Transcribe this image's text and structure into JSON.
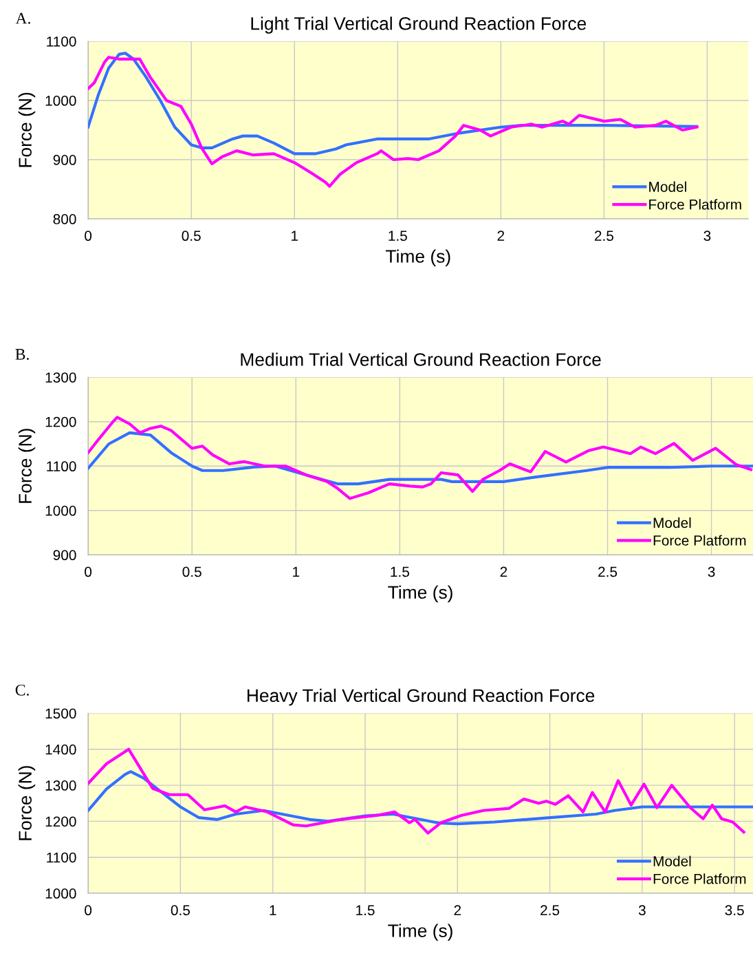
{
  "chart_data": [
    {
      "type": "line",
      "title": "Light Trial Vertical Ground Reaction Force",
      "xlabel": "Time (s)",
      "ylabel": "Force (N)",
      "annotations": [
        "A."
      ],
      "xlim": [
        0,
        3.2
      ],
      "ylim": [
        800,
        1100
      ],
      "xticks": [
        0,
        0.5,
        1,
        1.5,
        2,
        2.5,
        3
      ],
      "yticks": [
        800,
        900,
        1000,
        1100
      ],
      "grid": true,
      "legend": "bottom right",
      "series": [
        {
          "name": "Model",
          "color": "#3370ff",
          "x": [
            0,
            0.05,
            0.1,
            0.15,
            0.18,
            0.22,
            0.28,
            0.35,
            0.42,
            0.5,
            0.55,
            0.6,
            0.7,
            0.75,
            0.82,
            0.9,
            1.0,
            1.1,
            1.2,
            1.25,
            1.4,
            1.65,
            1.8,
            2.0,
            2.1,
            2.5,
            2.95
          ],
          "values": [
            955,
            1010,
            1055,
            1078,
            1080,
            1070,
            1040,
            1000,
            955,
            925,
            920,
            920,
            935,
            940,
            940,
            928,
            910,
            910,
            918,
            925,
            935,
            935,
            945,
            955,
            958,
            958,
            956
          ]
        },
        {
          "name": "Force Platform",
          "color": "#ff00ff",
          "x": [
            0,
            0.03,
            0.08,
            0.1,
            0.15,
            0.25,
            0.3,
            0.38,
            0.45,
            0.5,
            0.55,
            0.6,
            0.65,
            0.72,
            0.8,
            0.9,
            1.0,
            1.08,
            1.15,
            1.17,
            1.22,
            1.3,
            1.4,
            1.42,
            1.48,
            1.55,
            1.6,
            1.7,
            1.78,
            1.82,
            1.9,
            1.95,
            2.05,
            2.15,
            2.2,
            2.3,
            2.33,
            2.38,
            2.5,
            2.58,
            2.65,
            2.75,
            2.8,
            2.88,
            2.95
          ],
          "values": [
            1020,
            1030,
            1065,
            1073,
            1070,
            1070,
            1040,
            1000,
            990,
            960,
            920,
            893,
            905,
            915,
            908,
            910,
            895,
            878,
            862,
            855,
            875,
            895,
            910,
            915,
            900,
            902,
            900,
            915,
            940,
            958,
            950,
            940,
            955,
            960,
            955,
            965,
            960,
            975,
            965,
            968,
            955,
            958,
            965,
            950,
            955
          ]
        }
      ]
    },
    {
      "type": "line",
      "title": "Medium Trial Vertical Ground Reaction Force",
      "xlabel": "Time (s)",
      "ylabel": "Force (N)",
      "annotations": [
        "B."
      ],
      "xlim": [
        0,
        3.2
      ],
      "ylim": [
        900,
        1300
      ],
      "xticks": [
        0,
        0.5,
        1,
        1.5,
        2,
        2.5,
        3
      ],
      "yticks": [
        900,
        1000,
        1100,
        1200,
        1300
      ],
      "grid": true,
      "legend": "bottom right",
      "series": [
        {
          "name": "Model",
          "color": "#3370ff",
          "x": [
            0,
            0.1,
            0.2,
            0.3,
            0.4,
            0.5,
            0.55,
            0.65,
            0.8,
            0.9,
            1.05,
            1.2,
            1.3,
            1.45,
            1.7,
            1.75,
            2.0,
            2.15,
            2.4,
            2.5,
            2.8,
            3.0,
            3.2
          ],
          "values": [
            1095,
            1150,
            1175,
            1170,
            1130,
            1100,
            1090,
            1090,
            1098,
            1100,
            1080,
            1060,
            1060,
            1070,
            1070,
            1065,
            1065,
            1075,
            1090,
            1097,
            1097,
            1100,
            1100
          ]
        },
        {
          "name": "Force Platform",
          "color": "#ff00ff",
          "x": [
            0,
            0.05,
            0.12,
            0.14,
            0.2,
            0.25,
            0.3,
            0.35,
            0.4,
            0.45,
            0.5,
            0.55,
            0.6,
            0.68,
            0.75,
            0.85,
            0.95,
            1.05,
            1.15,
            1.2,
            1.26,
            1.35,
            1.45,
            1.55,
            1.61,
            1.65,
            1.7,
            1.78,
            1.85,
            1.9,
            1.98,
            2.03,
            2.13,
            2.2,
            2.3,
            2.41,
            2.48,
            2.61,
            2.66,
            2.73,
            2.82,
            2.91,
            3.02,
            3.12,
            3.19
          ],
          "values": [
            1130,
            1160,
            1200,
            1210,
            1195,
            1175,
            1185,
            1190,
            1180,
            1160,
            1140,
            1145,
            1125,
            1105,
            1110,
            1100,
            1100,
            1080,
            1065,
            1050,
            1027,
            1040,
            1060,
            1055,
            1053,
            1060,
            1085,
            1080,
            1043,
            1070,
            1090,
            1105,
            1087,
            1133,
            1109,
            1135,
            1143,
            1128,
            1143,
            1128,
            1151,
            1113,
            1140,
            1103,
            1092
          ]
        }
      ]
    },
    {
      "type": "line",
      "title": "Heavy Trial Vertical Ground Reaction Force",
      "xlabel": "Time (s)",
      "ylabel": "Force (N)",
      "annotations": [
        "C."
      ],
      "xlim": [
        0,
        3.6
      ],
      "ylim": [
        1000,
        1500
      ],
      "xticks": [
        0,
        0.5,
        1,
        1.5,
        2,
        2.5,
        3,
        3.5
      ],
      "yticks": [
        1000,
        1100,
        1200,
        1300,
        1400,
        1500
      ],
      "grid": true,
      "legend": "bottom right",
      "series": [
        {
          "name": "Model",
          "color": "#3370ff",
          "x": [
            0,
            0.1,
            0.2,
            0.23,
            0.3,
            0.4,
            0.5,
            0.6,
            0.7,
            0.8,
            0.95,
            1.05,
            1.2,
            1.3,
            1.5,
            1.65,
            1.8,
            1.9,
            2.0,
            2.2,
            2.5,
            2.75,
            2.85,
            3.0,
            3.6
          ],
          "values": [
            1230,
            1290,
            1330,
            1338,
            1320,
            1280,
            1240,
            1210,
            1205,
            1220,
            1230,
            1220,
            1205,
            1200,
            1215,
            1220,
            1205,
            1195,
            1193,
            1198,
            1210,
            1220,
            1230,
            1240,
            1240
          ]
        },
        {
          "name": "Force Platform",
          "color": "#ff00ff",
          "x": [
            0,
            0.1,
            0.22,
            0.35,
            0.44,
            0.54,
            0.63,
            0.74,
            0.8,
            0.85,
            0.97,
            1.11,
            1.18,
            1.37,
            1.56,
            1.66,
            1.74,
            1.77,
            1.84,
            1.91,
            2.02,
            2.14,
            2.28,
            2.36,
            2.44,
            2.48,
            2.53,
            2.6,
            2.68,
            2.73,
            2.8,
            2.87,
            2.94,
            3.01,
            3.08,
            3.16,
            3.26,
            3.33,
            3.38,
            3.43,
            3.49,
            3.55
          ],
          "values": [
            1305,
            1360,
            1400,
            1291,
            1274,
            1274,
            1232,
            1243,
            1226,
            1240,
            1226,
            1190,
            1187,
            1205,
            1216,
            1226,
            1196,
            1205,
            1167,
            1196,
            1216,
            1230,
            1236,
            1262,
            1250,
            1256,
            1247,
            1271,
            1226,
            1280,
            1226,
            1313,
            1245,
            1303,
            1238,
            1300,
            1238,
            1207,
            1245,
            1207,
            1198,
            1170
          ]
        }
      ]
    }
  ]
}
